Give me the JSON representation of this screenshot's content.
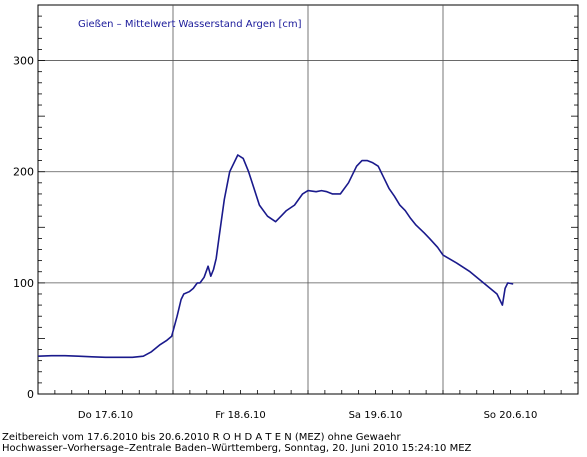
{
  "chart_data": {
    "type": "line",
    "title": "Gießen – Mittelwert Wasserstand Argen [cm]",
    "xlabel": "",
    "ylabel": "",
    "ylim": [
      0,
      350
    ],
    "xlim": [
      0,
      4.0
    ],
    "yticks": [
      0,
      100,
      200,
      300
    ],
    "xtick_labels": [
      {
        "label": "Do 17.6.10",
        "x": 0.5
      },
      {
        "label": "Fr 18.6.10",
        "x": 1.5
      },
      {
        "label": "Sa 19.6.10",
        "x": 2.5
      },
      {
        "label": "So 20.6.10",
        "x": 3.5
      }
    ],
    "day_boundaries": [
      1,
      2,
      3
    ],
    "grid": true,
    "series": [
      {
        "color": "#1a1a8c",
        "x": [
          0.0,
          0.1,
          0.2,
          0.3,
          0.4,
          0.5,
          0.6,
          0.7,
          0.78,
          0.84,
          0.9,
          0.95,
          0.99,
          1.03,
          1.06,
          1.08,
          1.12,
          1.15,
          1.18,
          1.2,
          1.23,
          1.26,
          1.28,
          1.3,
          1.32,
          1.34,
          1.38,
          1.42,
          1.48,
          1.52,
          1.56,
          1.6,
          1.64,
          1.7,
          1.76,
          1.8,
          1.84,
          1.9,
          1.96,
          2.0,
          2.06,
          2.1,
          2.14,
          2.18,
          2.24,
          2.3,
          2.36,
          2.4,
          2.44,
          2.48,
          2.52,
          2.56,
          2.6,
          2.64,
          2.68,
          2.72,
          2.76,
          2.8,
          2.86,
          2.9,
          2.96,
          3.0,
          3.1,
          3.2,
          3.3,
          3.4,
          3.44,
          3.46,
          3.48,
          3.52
        ],
        "y": [
          34,
          34.5,
          34.5,
          34,
          33.5,
          33,
          33,
          33,
          34,
          38,
          44,
          48,
          52,
          70,
          85,
          90,
          92,
          95,
          100,
          100,
          105,
          115,
          106,
          112,
          122,
          140,
          175,
          200,
          215,
          212,
          200,
          185,
          170,
          160,
          155,
          160,
          165,
          170,
          180,
          183,
          182,
          183,
          182,
          180,
          180,
          190,
          205,
          210,
          210,
          208,
          205,
          195,
          185,
          178,
          170,
          165,
          158,
          152,
          145,
          140,
          132,
          125,
          118,
          110,
          100,
          90,
          80,
          95,
          100,
          99
        ]
      }
    ]
  },
  "footer": {
    "line1": "Zeitbereich vom 17.6.2010 bis 20.6.2010      R O H D A T E N (MEZ) ohne Gewaehr",
    "line2": "Hochwasser–Vorhersage–Zentrale Baden–Württemberg, Sonntag, 20. Juni 2010 15:24:10 MEZ"
  }
}
